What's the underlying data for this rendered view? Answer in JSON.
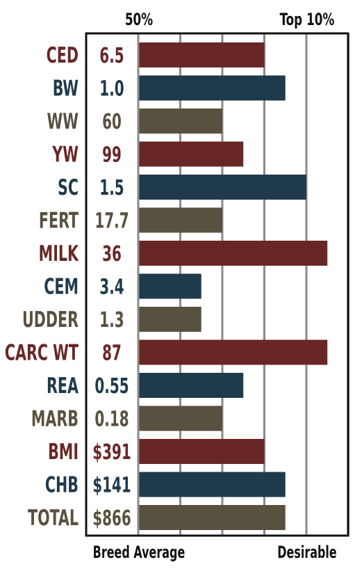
{
  "chart_data": {
    "type": "bar",
    "orientation": "horizontal",
    "top_left_label": "50%",
    "top_right_label": "Top 10%",
    "bottom_left_label": "Breed Average",
    "bottom_right_label": "Desirable",
    "scale_steps": 5,
    "grid": true,
    "colors": {
      "red": "#682726",
      "blue": "#1f3a4b",
      "gray": "#59513f"
    },
    "rows": [
      {
        "label": "CED",
        "value_text": "6.5",
        "steps": 3.0,
        "color": "red"
      },
      {
        "label": "BW",
        "value_text": "1.0",
        "steps": 3.5,
        "color": "blue"
      },
      {
        "label": "WW",
        "value_text": "60",
        "steps": 2.0,
        "color": "gray"
      },
      {
        "label": "YW",
        "value_text": "99",
        "steps": 2.5,
        "color": "red"
      },
      {
        "label": "SC",
        "value_text": "1.5",
        "steps": 4.0,
        "color": "blue"
      },
      {
        "label": "FERT",
        "value_text": "17.7",
        "steps": 2.0,
        "color": "gray"
      },
      {
        "label": "MILK",
        "value_text": "36",
        "steps": 4.5,
        "color": "red"
      },
      {
        "label": "CEM",
        "value_text": "3.4",
        "steps": 1.5,
        "color": "blue"
      },
      {
        "label": "UDDER",
        "value_text": "1.3",
        "steps": 1.5,
        "color": "gray"
      },
      {
        "label": "CARC WT",
        "value_text": "87",
        "steps": 4.5,
        "color": "red"
      },
      {
        "label": "REA",
        "value_text": "0.55",
        "steps": 2.5,
        "color": "blue"
      },
      {
        "label": "MARB",
        "value_text": "0.18",
        "steps": 2.0,
        "color": "gray"
      },
      {
        "label": "BMI",
        "value_text": "$391",
        "steps": 3.0,
        "color": "red"
      },
      {
        "label": "CHB",
        "value_text": "$141",
        "steps": 3.5,
        "color": "blue"
      },
      {
        "label": "TOTAL",
        "value_text": "$866",
        "steps": 3.5,
        "color": "gray"
      }
    ]
  }
}
